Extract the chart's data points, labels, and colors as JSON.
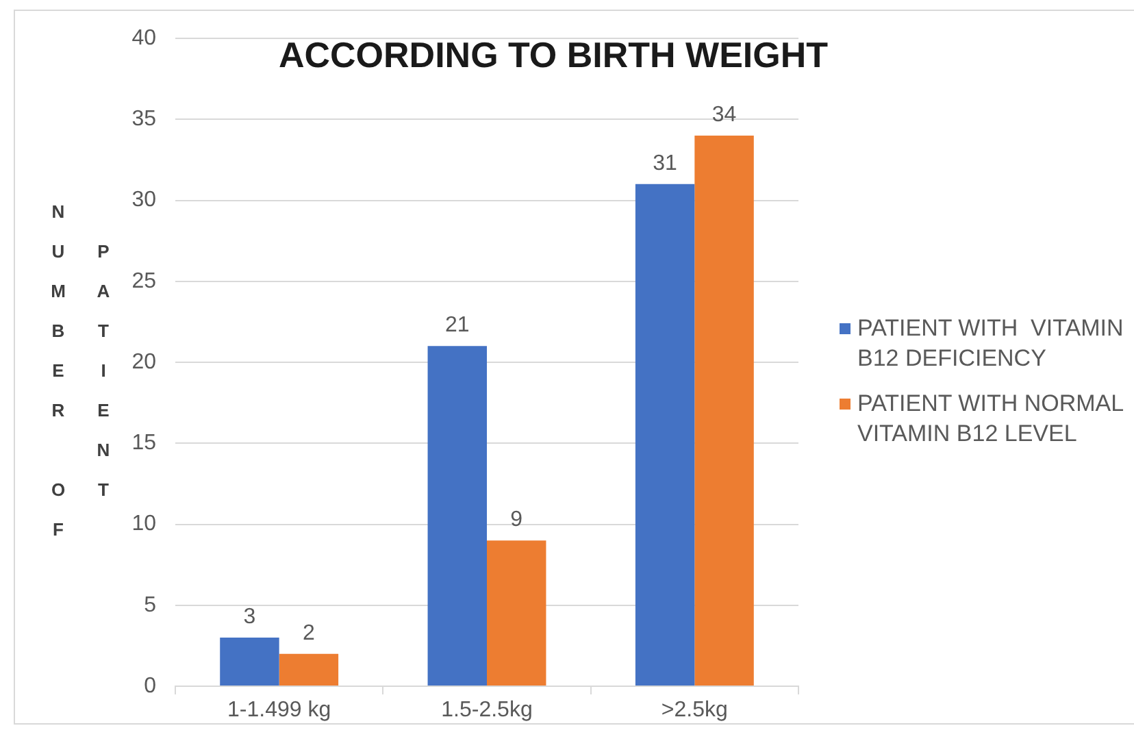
{
  "chart_data": {
    "type": "bar",
    "title": "ACCORDING TO BIRTH WEIGHT",
    "ylabel": "NUMBER OF PATIENT",
    "categories": [
      "1-1.499 kg",
      "1.5-2.5kg",
      ">2.5kg"
    ],
    "series": [
      {
        "name": "PATIENT WITH  VITAMIN B12 DEFICIENCY",
        "color": "#4472c4",
        "values": [
          3,
          21,
          31
        ]
      },
      {
        "name": "PATIENT WITH NORMAL VITAMIN B12 LEVEL",
        "color": "#ed7d31",
        "values": [
          2,
          9,
          34
        ]
      }
    ],
    "ylim": [
      0,
      40
    ],
    "yticks": [
      0,
      5,
      10,
      15,
      20,
      25,
      30,
      35,
      40
    ],
    "grid": "y",
    "legend": "right",
    "data_labels": true
  }
}
